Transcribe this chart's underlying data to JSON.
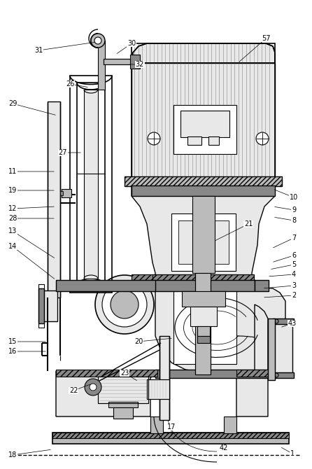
{
  "bg_color": "#ffffff",
  "line_color": "#000000",
  "gray_light": "#e8e8e8",
  "gray_med": "#bbbbbb",
  "gray_dark": "#888888",
  "gray_hatch": "#555555",
  "figsize": [
    4.46,
    6.7
  ],
  "dpi": 100,
  "leader_lines": [
    [
      "57",
      [
        380,
        55
      ],
      [
        340,
        90
      ]
    ],
    [
      "10",
      [
        420,
        282
      ],
      [
        390,
        270
      ]
    ],
    [
      "9",
      [
        420,
        300
      ],
      [
        390,
        295
      ]
    ],
    [
      "8",
      [
        420,
        315
      ],
      [
        390,
        310
      ]
    ],
    [
      "21",
      [
        355,
        320
      ],
      [
        305,
        345
      ]
    ],
    [
      "7",
      [
        420,
        340
      ],
      [
        388,
        355
      ]
    ],
    [
      "6",
      [
        420,
        365
      ],
      [
        388,
        375
      ]
    ],
    [
      "5",
      [
        420,
        378
      ],
      [
        385,
        385
      ]
    ],
    [
      "4",
      [
        420,
        392
      ],
      [
        382,
        395
      ]
    ],
    [
      "3",
      [
        420,
        408
      ],
      [
        375,
        412
      ]
    ],
    [
      "2",
      [
        420,
        422
      ],
      [
        375,
        425
      ]
    ],
    [
      "43",
      [
        418,
        462
      ],
      [
        400,
        468
      ]
    ],
    [
      "1",
      [
        418,
        648
      ],
      [
        400,
        638
      ]
    ],
    [
      "42",
      [
        320,
        640
      ],
      [
        315,
        632
      ]
    ],
    [
      "17",
      [
        245,
        610
      ],
      [
        245,
        625
      ]
    ],
    [
      "18",
      [
        18,
        650
      ],
      [
        75,
        642
      ]
    ],
    [
      "15",
      [
        18,
        488
      ],
      [
        68,
        488
      ]
    ],
    [
      "16",
      [
        18,
        502
      ],
      [
        68,
        502
      ]
    ],
    [
      "14",
      [
        18,
        352
      ],
      [
        80,
        400
      ]
    ],
    [
      "13",
      [
        18,
        330
      ],
      [
        80,
        370
      ]
    ],
    [
      "28",
      [
        18,
        312
      ],
      [
        80,
        312
      ]
    ],
    [
      "12",
      [
        18,
        298
      ],
      [
        80,
        295
      ]
    ],
    [
      "19",
      [
        18,
        272
      ],
      [
        80,
        272
      ]
    ],
    [
      "11",
      [
        18,
        245
      ],
      [
        80,
        245
      ]
    ],
    [
      "29",
      [
        18,
        148
      ],
      [
        82,
        165
      ]
    ],
    [
      "27",
      [
        90,
        218
      ],
      [
        118,
        218
      ]
    ],
    [
      "26",
      [
        100,
        120
      ],
      [
        128,
        125
      ]
    ],
    [
      "31",
      [
        55,
        72
      ],
      [
        138,
        60
      ]
    ],
    [
      "30",
      [
        188,
        62
      ],
      [
        165,
        78
      ]
    ],
    [
      "32",
      [
        200,
        92
      ],
      [
        183,
        92
      ]
    ],
    [
      "20",
      [
        198,
        488
      ],
      [
        248,
        483
      ]
    ],
    [
      "23",
      [
        178,
        533
      ],
      [
        198,
        545
      ]
    ],
    [
      "22",
      [
        105,
        558
      ],
      [
        132,
        548
      ]
    ]
  ]
}
